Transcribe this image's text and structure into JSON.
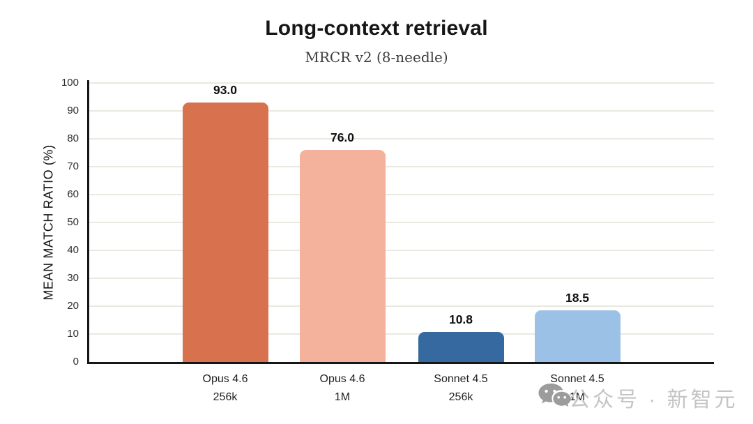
{
  "header": {
    "title": "Long-context retrieval",
    "subtitle": "MRCR v2 (8-needle)"
  },
  "chart_data": {
    "type": "bar",
    "categories": [
      {
        "line1": "Opus 4.6",
        "line2": "256k"
      },
      {
        "line1": "Opus 4.6",
        "line2": "1M"
      },
      {
        "line1": "Sonnet 4.5",
        "line2": "256k"
      },
      {
        "line1": "Sonnet 4.5",
        "line2": "1M"
      }
    ],
    "values": [
      93.0,
      76.0,
      10.8,
      18.5
    ],
    "value_labels": [
      "93.0",
      "76.0",
      "10.8",
      "18.5"
    ],
    "bar_colors": [
      "#d7714e",
      "#f4b29c",
      "#35699f",
      "#9cc1e6"
    ],
    "title": "Long-context retrieval",
    "subtitle": "MRCR v2 (8-needle)",
    "xlabel": "",
    "ylabel": "MEAN MATCH RATIO (%)",
    "ylim": [
      0,
      100
    ],
    "yticks": [
      0,
      10,
      20,
      30,
      40,
      50,
      60,
      70,
      80,
      90,
      100
    ],
    "grid": true,
    "legend": false,
    "colors": {
      "axis": "#161616",
      "gridline": "#ebe8e1",
      "tick_text": "#2e2e2e",
      "value_text": "#111111"
    }
  },
  "watermark": {
    "icon": "wechat-icon",
    "text": "公众号 · 新智元",
    "text_color": "#c4c4c4",
    "icon_color": "#9c9c9c"
  }
}
